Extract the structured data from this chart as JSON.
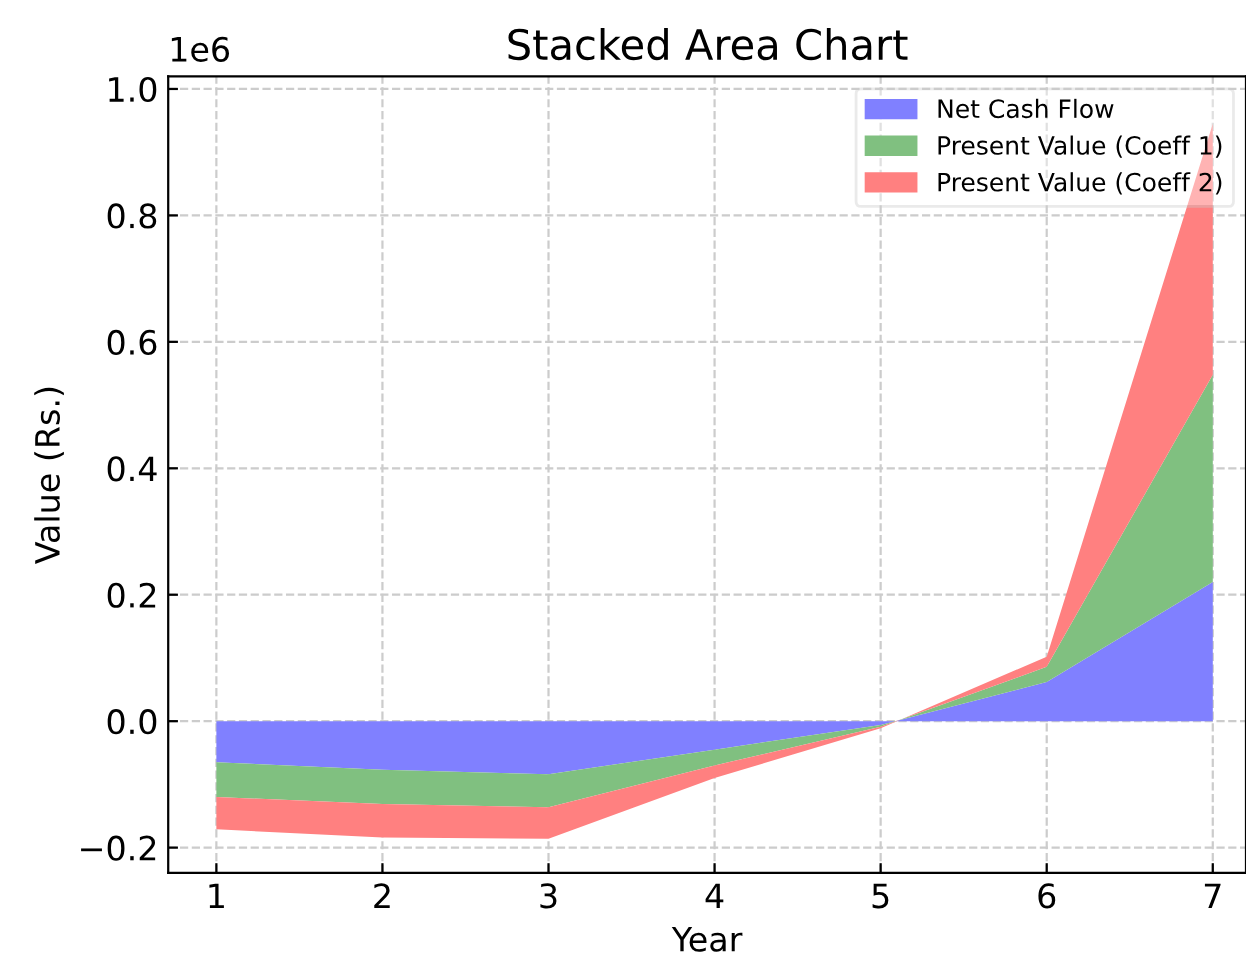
{
  "chart_data": {
    "type": "area",
    "stacked": true,
    "title": "Stacked Area Chart",
    "xlabel": "Year",
    "ylabel": "Value (Rs.)",
    "x": [
      1,
      2,
      3,
      4,
      5,
      6,
      7
    ],
    "series": [
      {
        "name": "Net Cash Flow",
        "color": "#8080ff",
        "values": [
          -0.065,
          -0.077,
          -0.084,
          -0.045,
          -0.006,
          0.062,
          0.22
        ]
      },
      {
        "name": "Present Value (Coeff 1)",
        "color": "#80c080",
        "values": [
          -0.055,
          -0.054,
          -0.052,
          -0.025,
          -0.003,
          0.024,
          0.328
        ]
      },
      {
        "name": "Present Value (Coeff 2)",
        "color": "#ff8080",
        "values": [
          -0.051,
          -0.053,
          -0.05,
          -0.02,
          -0.002,
          0.016,
          0.397
        ]
      }
    ],
    "xlim": [
      0.71,
      7.2
    ],
    "ylim": [
      -0.24,
      1.02
    ],
    "xticks": [
      1,
      2,
      3,
      4,
      5,
      6,
      7
    ],
    "yticks": [
      {
        "value": -0.2,
        "label": "−0.2"
      },
      {
        "value": 0,
        "label": "0.0"
      },
      {
        "value": 0.2,
        "label": "0.2"
      },
      {
        "value": 0.4,
        "label": "0.4"
      },
      {
        "value": 0.6,
        "label": "0.6"
      },
      {
        "value": 0.8,
        "label": "0.8"
      },
      {
        "value": 1.0,
        "label": "1.0"
      }
    ],
    "annotations": [
      "1e6"
    ],
    "grid": true,
    "legend": "top right"
  }
}
